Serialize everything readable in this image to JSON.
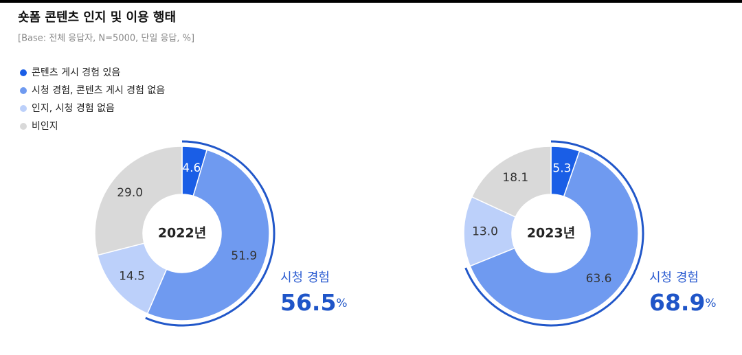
{
  "title": "숏폼 콘텐츠 인지 및 이용 행태",
  "subtitle": "[Base: 전체 응답자, N=5000, 단일 응답, %]",
  "legend": {
    "categories": [
      "콘텐츠 게시 경험 있음",
      "시청 경험, 콘텐츠 게시 경험 없음",
      "인지, 시청 경험 없음",
      "비인지"
    ],
    "colors": [
      "#1a5ee6",
      "#6f9af0",
      "#bcd0fa",
      "#d9d9d9"
    ]
  },
  "chart_data": [
    {
      "type": "pie",
      "center_label": "2022년",
      "values": [
        4.6,
        51.9,
        14.5,
        29.0
      ],
      "value_labels": [
        "4.6",
        "51.9",
        "14.5",
        "29.0"
      ],
      "highlight": {
        "label": "시청 경험",
        "value": 56.5,
        "unit": "%"
      }
    },
    {
      "type": "pie",
      "center_label": "2023년",
      "values": [
        5.3,
        63.6,
        13.0,
        18.1
      ],
      "value_labels": [
        "5.3",
        "63.6",
        "13.0",
        "18.1"
      ],
      "highlight": {
        "label": "시청 경험",
        "value": 68.9,
        "unit": "%"
      }
    }
  ]
}
